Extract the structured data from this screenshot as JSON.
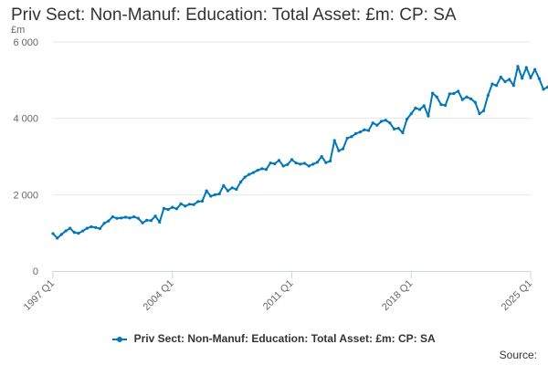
{
  "title": "Priv Sect: Non-Manuf: Education: Total Asset: £m: CP: SA",
  "source_label": "Source:",
  "colors": {
    "series": "#0077b6",
    "grid": "#e6e6e6",
    "axis": "#ccd6eb"
  },
  "chart_data": {
    "type": "line",
    "title": "Priv Sect: Non-Manuf: Education: Total Asset: £m: CP: SA",
    "ylabel": "£m",
    "xlabel": "",
    "ylim": [
      0,
      6000
    ],
    "yticks": [
      {
        "value": 0,
        "label": "0"
      },
      {
        "value": 2000,
        "label": "2 000"
      },
      {
        "value": 4000,
        "label": "4 000"
      },
      {
        "value": 6000,
        "label": "6 000"
      }
    ],
    "xlim": [
      "1997 Q1",
      "2025 Q1"
    ],
    "xticks": [
      "1997 Q1",
      "2004 Q1",
      "2011 Q1",
      "2018 Q1",
      "2025 Q1"
    ],
    "grid": true,
    "legend": "bottom-center",
    "series": [
      {
        "name": "Priv Sect: Non-Manuf: Education: Total Asset: £m: CP: SA",
        "points": [
          [
            "1997 Q1",
            980
          ],
          [
            "1997 Q2",
            860
          ],
          [
            "1997 Q3",
            960
          ],
          [
            "1997 Q4",
            1050
          ],
          [
            "1998 Q1",
            1120
          ],
          [
            "1998 Q2",
            1010
          ],
          [
            "1998 Q3",
            990
          ],
          [
            "1998 Q4",
            1050
          ],
          [
            "1999 Q1",
            1120
          ],
          [
            "1999 Q2",
            1160
          ],
          [
            "1999 Q3",
            1140
          ],
          [
            "1999 Q4",
            1110
          ],
          [
            "2000 Q1",
            1250
          ],
          [
            "2000 Q2",
            1310
          ],
          [
            "2000 Q3",
            1420
          ],
          [
            "2000 Q4",
            1380
          ],
          [
            "2001 Q1",
            1390
          ],
          [
            "2001 Q2",
            1410
          ],
          [
            "2001 Q3",
            1390
          ],
          [
            "2001 Q4",
            1420
          ],
          [
            "2002 Q1",
            1380
          ],
          [
            "2002 Q2",
            1260
          ],
          [
            "2002 Q3",
            1330
          ],
          [
            "2002 Q4",
            1320
          ],
          [
            "2003 Q1",
            1440
          ],
          [
            "2003 Q2",
            1280
          ],
          [
            "2003 Q3",
            1640
          ],
          [
            "2003 Q4",
            1610
          ],
          [
            "2004 Q1",
            1670
          ],
          [
            "2004 Q2",
            1630
          ],
          [
            "2004 Q3",
            1760
          ],
          [
            "2004 Q4",
            1700
          ],
          [
            "2005 Q1",
            1750
          ],
          [
            "2005 Q2",
            1740
          ],
          [
            "2005 Q3",
            1820
          ],
          [
            "2005 Q4",
            1830
          ],
          [
            "2006 Q1",
            2100
          ],
          [
            "2006 Q2",
            1960
          ],
          [
            "2006 Q3",
            2000
          ],
          [
            "2006 Q4",
            2020
          ],
          [
            "2007 Q1",
            2240
          ],
          [
            "2007 Q2",
            2100
          ],
          [
            "2007 Q3",
            2180
          ],
          [
            "2007 Q4",
            2140
          ],
          [
            "2008 Q1",
            2330
          ],
          [
            "2008 Q2",
            2460
          ],
          [
            "2008 Q3",
            2530
          ],
          [
            "2008 Q4",
            2580
          ],
          [
            "2009 Q1",
            2640
          ],
          [
            "2009 Q2",
            2680
          ],
          [
            "2009 Q3",
            2660
          ],
          [
            "2009 Q4",
            2830
          ],
          [
            "2010 Q1",
            2810
          ],
          [
            "2010 Q2",
            2900
          ],
          [
            "2010 Q3",
            2750
          ],
          [
            "2010 Q4",
            2790
          ],
          [
            "2011 Q1",
            2920
          ],
          [
            "2011 Q2",
            2830
          ],
          [
            "2011 Q3",
            2800
          ],
          [
            "2011 Q4",
            2820
          ],
          [
            "2012 Q1",
            2750
          ],
          [
            "2012 Q2",
            2800
          ],
          [
            "2012 Q3",
            2850
          ],
          [
            "2012 Q4",
            3000
          ],
          [
            "2013 Q1",
            2840
          ],
          [
            "2013 Q2",
            2880
          ],
          [
            "2013 Q3",
            3420
          ],
          [
            "2013 Q4",
            3150
          ],
          [
            "2014 Q1",
            3200
          ],
          [
            "2014 Q2",
            3480
          ],
          [
            "2014 Q3",
            3520
          ],
          [
            "2014 Q4",
            3600
          ],
          [
            "2015 Q1",
            3640
          ],
          [
            "2015 Q2",
            3700
          ],
          [
            "2015 Q3",
            3680
          ],
          [
            "2015 Q4",
            3880
          ],
          [
            "2016 Q1",
            3820
          ],
          [
            "2016 Q2",
            3920
          ],
          [
            "2016 Q3",
            3950
          ],
          [
            "2016 Q4",
            3880
          ],
          [
            "2017 Q1",
            3720
          ],
          [
            "2017 Q2",
            3740
          ],
          [
            "2017 Q3",
            3620
          ],
          [
            "2017 Q4",
            3980
          ],
          [
            "2018 Q1",
            4120
          ],
          [
            "2018 Q2",
            4270
          ],
          [
            "2018 Q3",
            4230
          ],
          [
            "2018 Q4",
            4330
          ],
          [
            "2019 Q1",
            4060
          ],
          [
            "2019 Q2",
            4660
          ],
          [
            "2019 Q3",
            4560
          ],
          [
            "2019 Q4",
            4360
          ],
          [
            "2020 Q1",
            4340
          ],
          [
            "2020 Q2",
            4640
          ],
          [
            "2020 Q3",
            4650
          ],
          [
            "2020 Q4",
            4710
          ],
          [
            "2021 Q1",
            4490
          ],
          [
            "2021 Q2",
            4560
          ],
          [
            "2021 Q3",
            4510
          ],
          [
            "2021 Q4",
            4420
          ],
          [
            "2022 Q1",
            4120
          ],
          [
            "2022 Q2",
            4200
          ],
          [
            "2022 Q3",
            4600
          ],
          [
            "2022 Q4",
            4900
          ],
          [
            "2023 Q1",
            4860
          ],
          [
            "2023 Q2",
            5080
          ],
          [
            "2023 Q3",
            4960
          ],
          [
            "2023 Q4",
            5020
          ],
          [
            "2024 Q1",
            4860
          ],
          [
            "2024 Q2",
            5360
          ],
          [
            "2024 Q3",
            5050
          ],
          [
            "2024 Q4",
            5330
          ],
          [
            "2025 Q1",
            5060
          ],
          [
            "2025 Q2",
            5280
          ],
          [
            "2025 Q3",
            5040
          ],
          [
            "2025 Q4",
            4760
          ],
          [
            "2026 Q1",
            4820
          ],
          [
            "2026 Q2",
            4680
          ]
        ]
      }
    ]
  }
}
